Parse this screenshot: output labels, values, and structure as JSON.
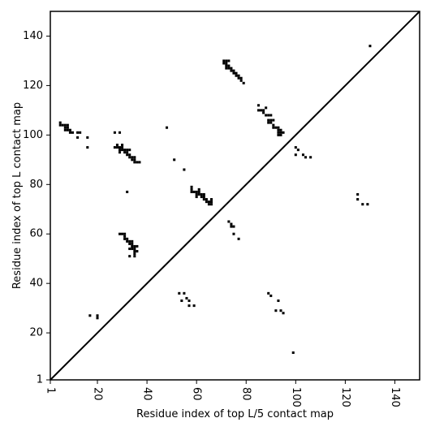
{
  "chart_data": {
    "type": "scatter",
    "title": "",
    "xlabel": "Residue index of top L/5 contact map",
    "ylabel": "Residue index of top L contact map",
    "xlim": [
      1,
      150
    ],
    "ylim": [
      1,
      150
    ],
    "x_ticks": [
      1,
      20,
      40,
      60,
      80,
      100,
      120,
      140
    ],
    "y_ticks": [
      1,
      20,
      40,
      60,
      80,
      100,
      120,
      140
    ],
    "x_tick_labels": [
      "1",
      "20",
      "40",
      "60",
      "80",
      "100",
      "120",
      "140"
    ],
    "y_tick_labels": [
      "1",
      "20",
      "40",
      "60",
      "80",
      "100",
      "120",
      "140"
    ],
    "x_tick_rotation": -90,
    "diagonal_line": true,
    "marker": "square",
    "marker_color": "#000000",
    "points": [
      [
        5,
        105
      ],
      [
        5,
        104
      ],
      [
        6,
        104
      ],
      [
        7,
        104
      ],
      [
        8,
        104
      ],
      [
        7,
        103
      ],
      [
        8,
        103
      ],
      [
        7,
        102
      ],
      [
        8,
        102
      ],
      [
        9,
        102
      ],
      [
        9,
        101
      ],
      [
        10,
        101
      ],
      [
        12,
        101
      ],
      [
        13,
        101
      ],
      [
        12,
        99
      ],
      [
        16,
        99
      ],
      [
        16,
        95
      ],
      [
        27,
        101
      ],
      [
        29,
        101
      ],
      [
        27,
        95
      ],
      [
        28,
        96
      ],
      [
        28,
        95
      ],
      [
        29,
        95
      ],
      [
        29,
        94
      ],
      [
        29,
        93
      ],
      [
        30,
        96
      ],
      [
        30,
        95
      ],
      [
        30,
        94
      ],
      [
        31,
        94
      ],
      [
        31,
        93
      ],
      [
        32,
        94
      ],
      [
        32,
        93
      ],
      [
        32,
        92
      ],
      [
        33,
        94
      ],
      [
        33,
        92
      ],
      [
        33,
        91
      ],
      [
        34,
        91
      ],
      [
        34,
        90
      ],
      [
        35,
        91
      ],
      [
        35,
        90
      ],
      [
        35,
        89
      ],
      [
        36,
        89
      ],
      [
        37,
        89
      ],
      [
        48,
        103
      ],
      [
        51,
        90
      ],
      [
        55,
        86
      ],
      [
        32,
        77
      ],
      [
        58,
        79
      ],
      [
        58,
        78
      ],
      [
        58,
        77
      ],
      [
        59,
        77
      ],
      [
        60,
        77
      ],
      [
        60,
        76
      ],
      [
        60,
        75
      ],
      [
        61,
        78
      ],
      [
        61,
        77
      ],
      [
        61,
        76
      ],
      [
        62,
        76
      ],
      [
        62,
        75
      ],
      [
        63,
        76
      ],
      [
        63,
        75
      ],
      [
        63,
        74
      ],
      [
        64,
        74
      ],
      [
        64,
        73
      ],
      [
        65,
        73
      ],
      [
        65,
        72
      ],
      [
        66,
        74
      ],
      [
        66,
        73
      ],
      [
        66,
        72
      ],
      [
        71,
        130
      ],
      [
        71,
        129
      ],
      [
        72,
        130
      ],
      [
        72,
        129
      ],
      [
        72,
        128
      ],
      [
        72,
        127
      ],
      [
        73,
        130
      ],
      [
        73,
        128
      ],
      [
        73,
        127
      ],
      [
        74,
        127
      ],
      [
        74,
        126
      ],
      [
        75,
        126
      ],
      [
        75,
        125
      ],
      [
        76,
        125
      ],
      [
        76,
        124
      ],
      [
        77,
        124
      ],
      [
        77,
        123
      ],
      [
        78,
        123
      ],
      [
        78,
        122
      ],
      [
        79,
        121
      ],
      [
        85,
        112
      ],
      [
        85,
        110
      ],
      [
        86,
        110
      ],
      [
        87,
        110
      ],
      [
        87,
        109
      ],
      [
        88,
        111
      ],
      [
        88,
        108
      ],
      [
        89,
        108
      ],
      [
        89,
        106
      ],
      [
        89,
        105
      ],
      [
        90,
        108
      ],
      [
        90,
        106
      ],
      [
        90,
        105
      ],
      [
        91,
        106
      ],
      [
        91,
        104
      ],
      [
        91,
        103
      ],
      [
        92,
        103
      ],
      [
        93,
        103
      ],
      [
        93,
        102
      ],
      [
        93,
        101
      ],
      [
        93,
        100
      ],
      [
        94,
        102
      ],
      [
        94,
        101
      ],
      [
        94,
        100
      ],
      [
        95,
        101
      ],
      [
        100,
        95
      ],
      [
        100,
        92
      ],
      [
        101,
        94
      ],
      [
        103,
        92
      ],
      [
        104,
        91
      ],
      [
        106,
        91
      ],
      [
        29,
        60
      ],
      [
        30,
        60
      ],
      [
        31,
        60
      ],
      [
        31,
        59
      ],
      [
        31,
        58
      ],
      [
        32,
        58
      ],
      [
        32,
        57
      ],
      [
        33,
        57
      ],
      [
        33,
        56
      ],
      [
        34,
        57
      ],
      [
        34,
        56
      ],
      [
        34,
        55
      ],
      [
        34,
        54
      ],
      [
        35,
        55
      ],
      [
        35,
        54
      ],
      [
        35,
        53
      ],
      [
        35,
        52
      ],
      [
        35,
        51
      ],
      [
        36,
        55
      ],
      [
        36,
        53
      ],
      [
        33,
        54
      ],
      [
        33,
        51
      ],
      [
        73,
        65
      ],
      [
        74,
        64
      ],
      [
        74,
        63
      ],
      [
        75,
        63
      ],
      [
        75,
        60
      ],
      [
        77,
        58
      ],
      [
        125,
        76
      ],
      [
        125,
        74
      ],
      [
        127,
        72
      ],
      [
        129,
        72
      ],
      [
        130,
        136
      ],
      [
        17,
        27
      ],
      [
        20,
        27
      ],
      [
        20,
        26
      ],
      [
        53,
        36
      ],
      [
        55,
        36
      ],
      [
        54,
        33
      ],
      [
        56,
        34
      ],
      [
        57,
        33
      ],
      [
        57,
        31
      ],
      [
        59,
        31
      ],
      [
        89,
        36
      ],
      [
        90,
        35
      ],
      [
        92,
        29
      ],
      [
        93,
        33
      ],
      [
        94,
        29
      ],
      [
        95,
        28
      ],
      [
        99,
        12
      ]
    ]
  }
}
